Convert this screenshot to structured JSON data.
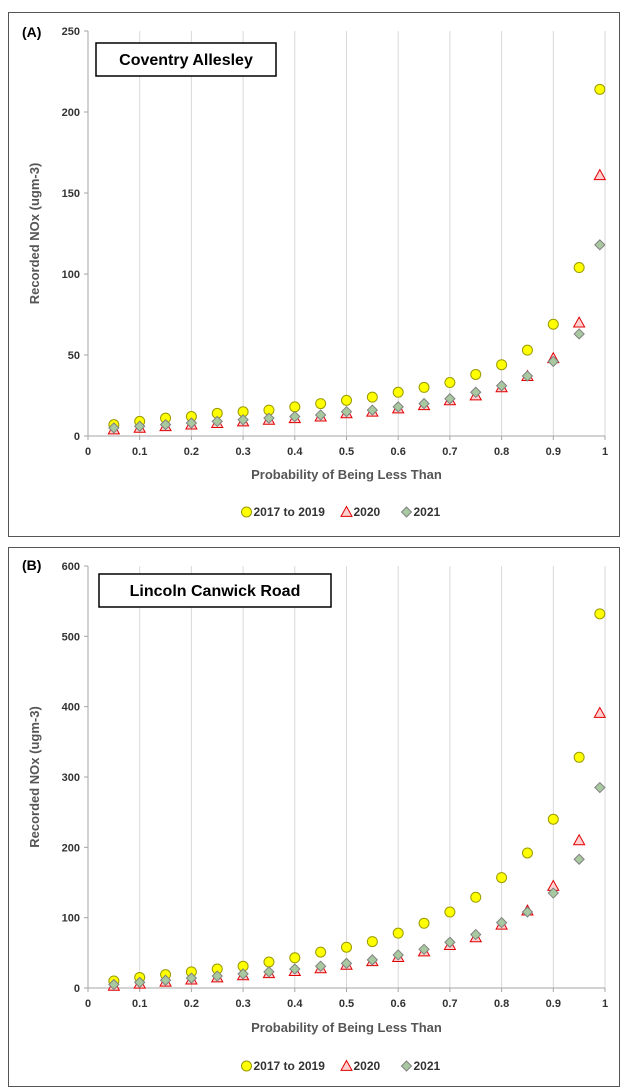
{
  "chart_data": [
    {
      "type": "scatter",
      "panel_label": "(A)",
      "title": "Coventry Allesley",
      "xlabel": "Probability of Being Less Than",
      "ylabel": "Recorded  NOx (ugm-3)",
      "xlim": [
        0,
        1
      ],
      "ylim": [
        0,
        250
      ],
      "xticks": [
        "0",
        "0.1",
        "0.2",
        "0.3",
        "0.4",
        "0.5",
        "0.6",
        "0.7",
        "0.8",
        "0.9",
        "1"
      ],
      "yticks": [
        "0",
        "50",
        "100",
        "150",
        "200",
        "250"
      ],
      "grid": "vertical",
      "legend_position": "bottom",
      "series": [
        {
          "name": "2017 to 2019",
          "marker": "circle",
          "color": "#ffff00",
          "stroke": "#9a9a00",
          "x": [
            0.05,
            0.1,
            0.15,
            0.2,
            0.25,
            0.3,
            0.35,
            0.4,
            0.45,
            0.5,
            0.55,
            0.6,
            0.65,
            0.7,
            0.75,
            0.8,
            0.85,
            0.9,
            0.95,
            0.99
          ],
          "y": [
            7,
            9,
            11,
            12,
            14,
            15,
            16,
            18,
            20,
            22,
            24,
            27,
            30,
            33,
            38,
            44,
            53,
            69,
            104,
            214
          ]
        },
        {
          "name": "2020",
          "marker": "triangle",
          "color": "#ffd0d0",
          "stroke": "#e00000",
          "x": [
            0.05,
            0.1,
            0.15,
            0.2,
            0.25,
            0.3,
            0.35,
            0.4,
            0.45,
            0.5,
            0.55,
            0.6,
            0.65,
            0.7,
            0.75,
            0.8,
            0.85,
            0.9,
            0.95,
            0.99
          ],
          "y": [
            4,
            5,
            6,
            7,
            8,
            9,
            10,
            11,
            12,
            14,
            15,
            17,
            19,
            22,
            25,
            30,
            37,
            48,
            70,
            161
          ]
        },
        {
          "name": "2021",
          "marker": "diamond",
          "color": "#a8c8a0",
          "stroke": "#808080",
          "x": [
            0.05,
            0.1,
            0.15,
            0.2,
            0.25,
            0.3,
            0.35,
            0.4,
            0.45,
            0.5,
            0.55,
            0.6,
            0.65,
            0.7,
            0.75,
            0.8,
            0.85,
            0.9,
            0.95,
            0.99
          ],
          "y": [
            5,
            6,
            7,
            8,
            9,
            10,
            11,
            12,
            13,
            15,
            16,
            18,
            20,
            23,
            27,
            31,
            37,
            46,
            63,
            118
          ]
        }
      ]
    },
    {
      "type": "scatter",
      "panel_label": "(B)",
      "title": "Lincoln Canwick Road",
      "xlabel": "Probability of Being Less Than",
      "ylabel": "Recorded NOx (ugm-3)",
      "xlim": [
        0,
        1
      ],
      "ylim": [
        0,
        600
      ],
      "xticks": [
        "0",
        "0.1",
        "0.2",
        "0.3",
        "0.4",
        "0.5",
        "0.6",
        "0.7",
        "0.8",
        "0.9",
        "1"
      ],
      "yticks": [
        "0",
        "100",
        "200",
        "300",
        "400",
        "500",
        "600"
      ],
      "grid": "vertical",
      "legend_position": "bottom",
      "series": [
        {
          "name": "2017 to 2019",
          "marker": "circle",
          "color": "#ffff00",
          "stroke": "#9a9a00",
          "x": [
            0.05,
            0.1,
            0.15,
            0.2,
            0.25,
            0.3,
            0.35,
            0.4,
            0.45,
            0.5,
            0.55,
            0.6,
            0.65,
            0.7,
            0.75,
            0.8,
            0.85,
            0.9,
            0.95,
            0.99
          ],
          "y": [
            10,
            15,
            19,
            23,
            27,
            31,
            37,
            43,
            51,
            58,
            66,
            78,
            92,
            108,
            129,
            157,
            192,
            240,
            328,
            532
          ]
        },
        {
          "name": "2020",
          "marker": "triangle",
          "color": "#ffd0d0",
          "stroke": "#e00000",
          "x": [
            0.05,
            0.1,
            0.15,
            0.2,
            0.25,
            0.3,
            0.35,
            0.4,
            0.45,
            0.5,
            0.55,
            0.6,
            0.65,
            0.7,
            0.75,
            0.8,
            0.85,
            0.9,
            0.95,
            0.99
          ],
          "y": [
            3,
            6,
            9,
            12,
            15,
            18,
            21,
            24,
            28,
            33,
            38,
            44,
            52,
            61,
            72,
            90,
            110,
            145,
            210,
            391
          ]
        },
        {
          "name": "2021",
          "marker": "diamond",
          "color": "#a8c8a0",
          "stroke": "#808080",
          "x": [
            0.05,
            0.1,
            0.15,
            0.2,
            0.25,
            0.3,
            0.35,
            0.4,
            0.45,
            0.5,
            0.55,
            0.6,
            0.65,
            0.7,
            0.75,
            0.8,
            0.85,
            0.9,
            0.95,
            0.99
          ],
          "y": [
            5,
            8,
            11,
            14,
            17,
            20,
            23,
            27,
            31,
            35,
            40,
            47,
            55,
            65,
            76,
            93,
            108,
            135,
            183,
            285
          ]
        }
      ]
    }
  ]
}
